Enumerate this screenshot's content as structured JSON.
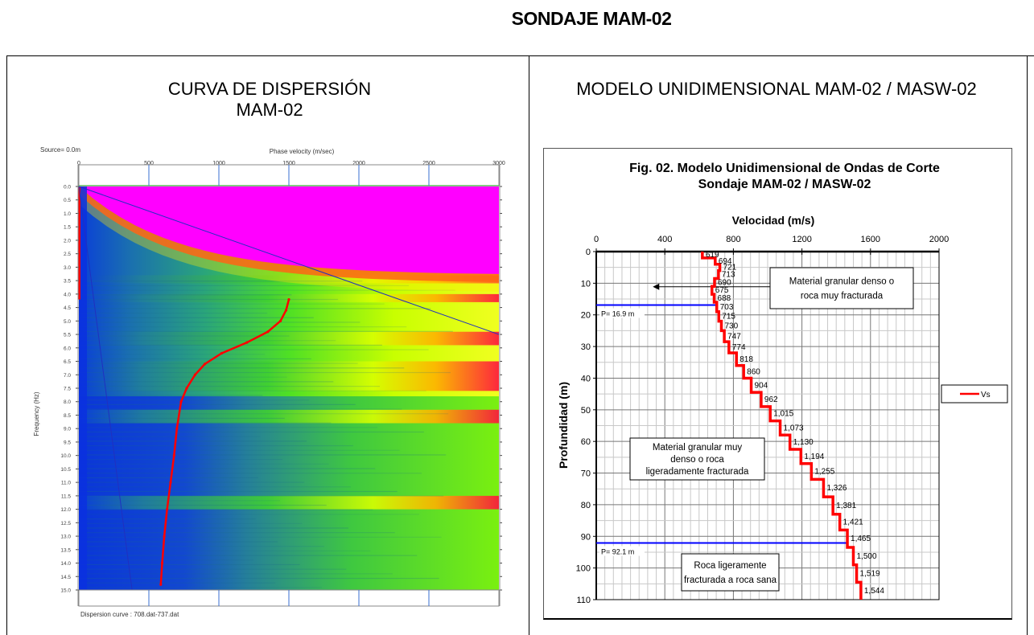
{
  "document": {
    "title": "SONDAJE MAM-02"
  },
  "left_panel": {
    "title_line1": "CURVA DE DISPERSIÓN",
    "title_line2": "MAM-02",
    "source_label": "Source= 0.0m",
    "footer_label": "Dispersion curve : 708.dat-737.dat"
  },
  "right_panel": {
    "title": "MODELO UNIDIMENSIONAL MAM-02 / MASW-02"
  },
  "chart_data": [
    {
      "type": "heatmap",
      "title": "CURVA DE DISPERSIÓN MAM-02",
      "xlabel": "Phase velocity (m/sec)",
      "ylabel": "Frequency (Hz)",
      "xlim": [
        0,
        3000
      ],
      "ylim": [
        0,
        15
      ],
      "x_ticks": [
        "0",
        "500",
        "1000",
        "1500",
        "2000",
        "2500",
        "3000"
      ],
      "y_ticks": [
        "0.0",
        "0.5",
        "1.0",
        "1.5",
        "2.0",
        "2.5",
        "3.0",
        "3.5",
        "4.0",
        "4.5",
        "5.0",
        "5.5",
        "6.0",
        "6.5",
        "7.0",
        "7.5",
        "8.0",
        "8.5",
        "9.0",
        "9.5",
        "10.0",
        "10.5",
        "11.0",
        "11.5",
        "12.0",
        "12.5",
        "13.0",
        "13.5",
        "14.0",
        "14.5",
        "15.0"
      ],
      "annotations": [
        "Source= 0.0m",
        "Dispersion curve : 708.dat-737.dat"
      ],
      "dispersion_curve": {
        "color": "#ff0000",
        "points": [
          {
            "f": 4.2,
            "v": 1500
          },
          {
            "f": 4.6,
            "v": 1480
          },
          {
            "f": 5.0,
            "v": 1440
          },
          {
            "f": 5.4,
            "v": 1350
          },
          {
            "f": 5.8,
            "v": 1200
          },
          {
            "f": 6.2,
            "v": 1020
          },
          {
            "f": 6.6,
            "v": 900
          },
          {
            "f": 7.0,
            "v": 830
          },
          {
            "f": 7.5,
            "v": 770
          },
          {
            "f": 8.0,
            "v": 730
          },
          {
            "f": 9.0,
            "v": 700
          },
          {
            "f": 10.0,
            "v": 680
          },
          {
            "f": 11.0,
            "v": 655
          },
          {
            "f": 12.0,
            "v": 630
          },
          {
            "f": 13.0,
            "v": 610
          },
          {
            "f": 14.0,
            "v": 595
          },
          {
            "f": 14.8,
            "v": 585
          }
        ]
      },
      "aliasing_lines": [
        {
          "from": {
            "f": 0,
            "v": 0
          },
          "to": {
            "f": 5.5,
            "v": 3000
          }
        },
        {
          "from": {
            "f": 0,
            "v": 0
          },
          "to": {
            "f": 15,
            "v": 380
          }
        }
      ]
    },
    {
      "type": "line",
      "title": "Fig. 02. Modelo Unidimensional de Ondas de Corte",
      "subtitle": "Sondaje MAM-02 / MASW-02",
      "xlabel": "Velocidad (m/s)",
      "ylabel": "Profundidad (m)",
      "xlim": [
        0,
        2000
      ],
      "ylim": [
        0,
        110
      ],
      "x_ticks": [
        "0",
        "400",
        "800",
        "1200",
        "1600",
        "2000"
      ],
      "y_ticks": [
        "0",
        "10",
        "20",
        "30",
        "40",
        "50",
        "60",
        "70",
        "80",
        "90",
        "100",
        "110"
      ],
      "grid": true,
      "legend": {
        "position": "right",
        "entries": [
          {
            "name": "Vs",
            "color": "#ff0000"
          }
        ]
      },
      "series": [
        {
          "name": "Vs",
          "color": "#ff0000",
          "layers": [
            {
              "top": 0,
              "bottom": 2,
              "vs": 619,
              "label": "619"
            },
            {
              "top": 2,
              "bottom": 4,
              "vs": 694,
              "label": "694"
            },
            {
              "top": 4,
              "bottom": 6,
              "vs": 721,
              "label": "721"
            },
            {
              "top": 6,
              "bottom": 8.5,
              "vs": 713,
              "label": "713"
            },
            {
              "top": 8.5,
              "bottom": 11,
              "vs": 690,
              "label": "690"
            },
            {
              "top": 11,
              "bottom": 13.5,
              "vs": 675,
              "label": "675"
            },
            {
              "top": 13.5,
              "bottom": 16,
              "vs": 688,
              "label": "688"
            },
            {
              "top": 16,
              "bottom": 19,
              "vs": 703,
              "label": "703"
            },
            {
              "top": 19,
              "bottom": 22,
              "vs": 715,
              "label": "715"
            },
            {
              "top": 22,
              "bottom": 25,
              "vs": 730,
              "label": "730"
            },
            {
              "top": 25,
              "bottom": 28.5,
              "vs": 747,
              "label": "747"
            },
            {
              "top": 28.5,
              "bottom": 32,
              "vs": 774,
              "label": "774"
            },
            {
              "top": 32,
              "bottom": 36,
              "vs": 818,
              "label": "818"
            },
            {
              "top": 36,
              "bottom": 40,
              "vs": 860,
              "label": "860"
            },
            {
              "top": 40,
              "bottom": 44.5,
              "vs": 904,
              "label": "904"
            },
            {
              "top": 44.5,
              "bottom": 49,
              "vs": 962,
              "label": "962"
            },
            {
              "top": 49,
              "bottom": 53.5,
              "vs": 1015,
              "label": "1,015"
            },
            {
              "top": 53.5,
              "bottom": 58,
              "vs": 1073,
              "label": "1,073"
            },
            {
              "top": 58,
              "bottom": 62.5,
              "vs": 1130,
              "label": "1,130"
            },
            {
              "top": 62.5,
              "bottom": 67,
              "vs": 1194,
              "label": "1,194"
            },
            {
              "top": 67,
              "bottom": 72,
              "vs": 1255,
              "label": "1,255"
            },
            {
              "top": 72,
              "bottom": 77.5,
              "vs": 1326,
              "label": "1,326"
            },
            {
              "top": 77.5,
              "bottom": 83,
              "vs": 1381,
              "label": "1,381"
            },
            {
              "top": 83,
              "bottom": 88,
              "vs": 1421,
              "label": "1,421"
            },
            {
              "top": 88,
              "bottom": 93.5,
              "vs": 1465,
              "label": "1,465"
            },
            {
              "top": 93.5,
              "bottom": 99,
              "vs": 1500,
              "label": "1,500"
            },
            {
              "top": 99,
              "bottom": 104.5,
              "vs": 1519,
              "label": "1,519"
            },
            {
              "top": 104.5,
              "bottom": 110,
              "vs": 1544,
              "label": "1,544"
            }
          ]
        }
      ],
      "horizontal_markers": [
        {
          "depth": 16.9,
          "label": "P= 16.9 m",
          "color": "#0000ff"
        },
        {
          "depth": 92.1,
          "label": "P= 92.1 m",
          "color": "#0000ff"
        }
      ],
      "annotations": [
        {
          "text": [
            "Material granular denso o",
            "roca muy fracturada"
          ],
          "depth": 7.5,
          "vs": 1380,
          "arrow_to_vs": 330,
          "arrow_depth": 11
        },
        {
          "text": [
            "Material granular muy",
            "denso o roca",
            "ligeradamente fracturada"
          ],
          "depth": 65,
          "vs": 700
        },
        {
          "text": [
            "Roca ligeramente",
            "fracturada a roca sana"
          ],
          "depth": 101,
          "vs": 900
        }
      ]
    }
  ]
}
